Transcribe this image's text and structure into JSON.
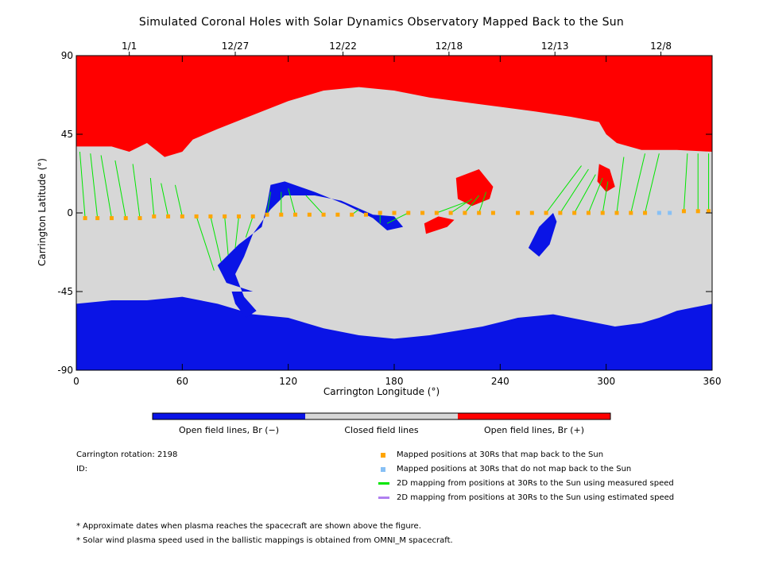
{
  "title": "Simulated Coronal Holes with Solar Dynamics Observatory Mapped Back to the Sun",
  "chart_data": {
    "type": "map",
    "xlabel": "Carrington Longitude (°)",
    "ylabel": "Carrington Latitude (°)",
    "xlim": [
      0,
      360
    ],
    "ylim": [
      -90,
      90
    ],
    "x_ticks": [
      "0",
      "60",
      "120",
      "180",
      "240",
      "300",
      "360"
    ],
    "x_tick_values": [
      0,
      60,
      120,
      180,
      240,
      300,
      360
    ],
    "y_ticks": [
      "90",
      "45",
      "0",
      "-45",
      "-90"
    ],
    "y_tick_values": [
      90,
      45,
      0,
      -45,
      -90
    ],
    "top_date_labels": [
      {
        "label": "1/1",
        "lon": 30
      },
      {
        "label": "12/27",
        "lon": 90
      },
      {
        "label": "12/22",
        "lon": 151
      },
      {
        "label": "12/18",
        "lon": 211
      },
      {
        "label": "12/13",
        "lon": 271
      },
      {
        "label": "12/8",
        "lon": 331
      }
    ],
    "colors": {
      "open_negative": "#0a14e6",
      "closed": "#d7d7d7",
      "open_positive": "#ff0000",
      "mapped": "#ffa500",
      "not_mapped": "#87c0f5",
      "measured_line": "#00e600",
      "estimated_line": "#b080f0"
    },
    "regions": {
      "north_polar_positive": [
        [
          0,
          90
        ],
        [
          360,
          90
        ],
        [
          360,
          35
        ],
        [
          340,
          36
        ],
        [
          320,
          36
        ],
        [
          306,
          40
        ],
        [
          300,
          45
        ],
        [
          296,
          52
        ],
        [
          280,
          55
        ],
        [
          260,
          58
        ],
        [
          230,
          62
        ],
        [
          200,
          66
        ],
        [
          180,
          70
        ],
        [
          160,
          72
        ],
        [
          140,
          70
        ],
        [
          120,
          64
        ],
        [
          100,
          56
        ],
        [
          80,
          48
        ],
        [
          66,
          42
        ],
        [
          60,
          35
        ],
        [
          50,
          32
        ],
        [
          40,
          40
        ],
        [
          30,
          35
        ],
        [
          20,
          38
        ],
        [
          10,
          38
        ],
        [
          0,
          38
        ]
      ],
      "south_polar_negative": [
        [
          0,
          -90
        ],
        [
          360,
          -90
        ],
        [
          360,
          -52
        ],
        [
          350,
          -54
        ],
        [
          340,
          -56
        ],
        [
          330,
          -60
        ],
        [
          320,
          -63
        ],
        [
          305,
          -65
        ],
        [
          290,
          -62
        ],
        [
          270,
          -58
        ],
        [
          250,
          -60
        ],
        [
          230,
          -65
        ],
        [
          200,
          -70
        ],
        [
          180,
          -72
        ],
        [
          160,
          -70
        ],
        [
          140,
          -66
        ],
        [
          120,
          -60
        ],
        [
          100,
          -58
        ],
        [
          80,
          -52
        ],
        [
          60,
          -48
        ],
        [
          40,
          -50
        ],
        [
          20,
          -50
        ],
        [
          0,
          -52
        ]
      ],
      "band_negative": [
        [
          100,
          -45
        ],
        [
          85,
          -40
        ],
        [
          80,
          -30
        ],
        [
          92,
          -18
        ],
        [
          105,
          -8
        ],
        [
          108,
          5
        ],
        [
          110,
          16
        ],
        [
          118,
          18
        ],
        [
          135,
          12
        ],
        [
          152,
          5
        ],
        [
          168,
          -3
        ],
        [
          176,
          -10
        ],
        [
          185,
          -8
        ],
        [
          180,
          -2
        ],
        [
          168,
          -1
        ],
        [
          150,
          7
        ],
        [
          135,
          10
        ],
        [
          118,
          10
        ],
        [
          110,
          2
        ],
        [
          100,
          -12
        ],
        [
          95,
          -25
        ],
        [
          90,
          -35
        ],
        [
          95,
          -48
        ],
        [
          102,
          -56
        ],
        [
          96,
          -60
        ],
        [
          90,
          -52
        ],
        [
          88,
          -45
        ]
      ],
      "pos_patch_center": [
        [
          215,
          20
        ],
        [
          228,
          25
        ],
        [
          236,
          15
        ],
        [
          234,
          8
        ],
        [
          224,
          4
        ],
        [
          216,
          8
        ]
      ],
      "pos_patch_lower": [
        [
          198,
          -12
        ],
        [
          210,
          -8
        ],
        [
          214,
          -4
        ],
        [
          205,
          -2
        ],
        [
          197,
          -6
        ]
      ],
      "pos_patch_right": [
        [
          296,
          28
        ],
        [
          302,
          25
        ],
        [
          305,
          15
        ],
        [
          300,
          12
        ],
        [
          295,
          18
        ]
      ],
      "neg_patch_right": [
        [
          262,
          -25
        ],
        [
          268,
          -18
        ],
        [
          272,
          -5
        ],
        [
          270,
          0
        ],
        [
          262,
          -8
        ],
        [
          256,
          -20
        ]
      ]
    },
    "mapped_points": [
      {
        "lon": 5,
        "lat": -3
      },
      {
        "lon": 12,
        "lat": -3
      },
      {
        "lon": 20,
        "lat": -3
      },
      {
        "lon": 28,
        "lat": -3
      },
      {
        "lon": 36,
        "lat": -3
      },
      {
        "lon": 44,
        "lat": -2
      },
      {
        "lon": 52,
        "lat": -2
      },
      {
        "lon": 60,
        "lat": -2
      },
      {
        "lon": 68,
        "lat": -2
      },
      {
        "lon": 76,
        "lat": -2
      },
      {
        "lon": 84,
        "lat": -2
      },
      {
        "lon": 92,
        "lat": -2
      },
      {
        "lon": 100,
        "lat": -2
      },
      {
        "lon": 108,
        "lat": -1
      },
      {
        "lon": 116,
        "lat": -1
      },
      {
        "lon": 124,
        "lat": -1
      },
      {
        "lon": 132,
        "lat": -1
      },
      {
        "lon": 140,
        "lat": -1
      },
      {
        "lon": 148,
        "lat": -1
      },
      {
        "lon": 156,
        "lat": -1
      },
      {
        "lon": 164,
        "lat": -1
      },
      {
        "lon": 172,
        "lat": 0
      },
      {
        "lon": 180,
        "lat": 0
      },
      {
        "lon": 188,
        "lat": 0
      },
      {
        "lon": 196,
        "lat": 0
      },
      {
        "lon": 204,
        "lat": 0
      },
      {
        "lon": 212,
        "lat": 0
      },
      {
        "lon": 220,
        "lat": 0
      },
      {
        "lon": 228,
        "lat": 0
      },
      {
        "lon": 236,
        "lat": 0
      },
      {
        "lon": 250,
        "lat": 0
      },
      {
        "lon": 258,
        "lat": 0
      },
      {
        "lon": 266,
        "lat": 0
      },
      {
        "lon": 274,
        "lat": 0
      },
      {
        "lon": 282,
        "lat": 0
      },
      {
        "lon": 290,
        "lat": 0
      },
      {
        "lon": 298,
        "lat": 0
      },
      {
        "lon": 306,
        "lat": 0
      },
      {
        "lon": 314,
        "lat": 0
      },
      {
        "lon": 322,
        "lat": 0
      },
      {
        "lon": 344,
        "lat": 1
      },
      {
        "lon": 352,
        "lat": 1
      },
      {
        "lon": 358,
        "lat": 1
      }
    ],
    "unmapped_points": [
      {
        "lon": 330,
        "lat": 0
      },
      {
        "lon": 336,
        "lat": 0
      }
    ],
    "mapping_lines": [
      {
        "from": [
          5,
          -3
        ],
        "to": [
          2,
          35
        ]
      },
      {
        "from": [
          12,
          -3
        ],
        "to": [
          8,
          34
        ]
      },
      {
        "from": [
          20,
          -3
        ],
        "to": [
          14,
          33
        ]
      },
      {
        "from": [
          28,
          -3
        ],
        "to": [
          22,
          30
        ]
      },
      {
        "from": [
          36,
          -3
        ],
        "to": [
          32,
          28
        ]
      },
      {
        "from": [
          44,
          -2
        ],
        "to": [
          42,
          20
        ]
      },
      {
        "from": [
          52,
          -2
        ],
        "to": [
          48,
          17
        ]
      },
      {
        "from": [
          60,
          -2
        ],
        "to": [
          56,
          16
        ]
      },
      {
        "from": [
          68,
          -2
        ],
        "to": [
          78,
          -33
        ]
      },
      {
        "from": [
          76,
          -2
        ],
        "to": [
          82,
          -28
        ]
      },
      {
        "from": [
          84,
          -2
        ],
        "to": [
          86,
          -24
        ]
      },
      {
        "from": [
          92,
          -2
        ],
        "to": [
          90,
          -20
        ]
      },
      {
        "from": [
          100,
          -2
        ],
        "to": [
          96,
          -14
        ]
      },
      {
        "from": [
          108,
          -1
        ],
        "to": [
          110,
          12
        ]
      },
      {
        "from": [
          116,
          -1
        ],
        "to": [
          116,
          12
        ]
      },
      {
        "from": [
          124,
          -1
        ],
        "to": [
          120,
          14
        ]
      },
      {
        "from": [
          140,
          -1
        ],
        "to": [
          130,
          10
        ]
      },
      {
        "from": [
          156,
          -1
        ],
        "to": [
          160,
          2
        ]
      },
      {
        "from": [
          172,
          0
        ],
        "to": [
          172,
          -6
        ]
      },
      {
        "from": [
          188,
          0
        ],
        "to": [
          176,
          -6
        ]
      },
      {
        "from": [
          204,
          0
        ],
        "to": [
          220,
          6
        ]
      },
      {
        "from": [
          212,
          0
        ],
        "to": [
          224,
          8
        ]
      },
      {
        "from": [
          220,
          0
        ],
        "to": [
          228,
          10
        ]
      },
      {
        "from": [
          228,
          0
        ],
        "to": [
          232,
          12
        ]
      },
      {
        "from": [
          266,
          0
        ],
        "to": [
          286,
          27
        ]
      },
      {
        "from": [
          274,
          0
        ],
        "to": [
          290,
          25
        ]
      },
      {
        "from": [
          282,
          0
        ],
        "to": [
          294,
          22
        ]
      },
      {
        "from": [
          290,
          0
        ],
        "to": [
          298,
          20
        ]
      },
      {
        "from": [
          298,
          0
        ],
        "to": [
          301,
          18
        ]
      },
      {
        "from": [
          306,
          0
        ],
        "to": [
          310,
          32
        ]
      },
      {
        "from": [
          314,
          0
        ],
        "to": [
          322,
          34
        ]
      },
      {
        "from": [
          322,
          0
        ],
        "to": [
          330,
          34
        ]
      },
      {
        "from": [
          344,
          1
        ],
        "to": [
          346,
          34
        ]
      },
      {
        "from": [
          352,
          1
        ],
        "to": [
          352,
          34
        ]
      },
      {
        "from": [
          358,
          1
        ],
        "to": [
          358,
          34
        ]
      }
    ],
    "colorbar": {
      "labels": [
        "Open field lines, Br (−)",
        "Closed field lines",
        "Open field lines, Br (+)"
      ]
    }
  },
  "info": {
    "rotation": "Carrington rotation: 2198",
    "id": "ID:"
  },
  "legend": {
    "mapped": "Mapped positions at 30Rs that map back to the Sun",
    "not_mapped": "Mapped positions at 30Rs that do not map back to the Sun",
    "measured": "2D mapping from positions at 30Rs to the Sun using measured speed",
    "estimated": "2D mapping from positions at 30Rs to the Sun using estimated speed"
  },
  "notes": [
    "* Approximate dates when plasma reaches the spacecraft are shown above the figure.",
    "* Solar wind plasma speed used in the ballistic mappings is obtained from OMNI_M spacecraft."
  ]
}
